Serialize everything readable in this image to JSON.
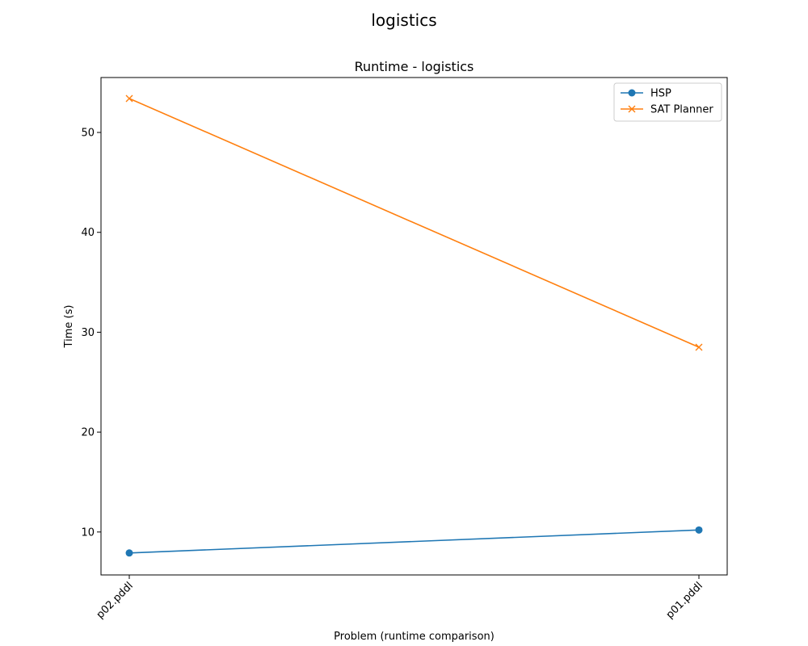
{
  "figure_title": "logistics",
  "chart_data": {
    "type": "line",
    "title": "Runtime - logistics",
    "xlabel": "Problem (runtime comparison)",
    "ylabel": "Time (s)",
    "categories": [
      "p02.pddl",
      "p01.pddl"
    ],
    "ylim": [
      5.7,
      55.5
    ],
    "yticks": [
      10,
      20,
      30,
      40,
      50
    ],
    "legend_position": "top-right",
    "grid": false,
    "series": [
      {
        "name": "HSP",
        "marker": "circle",
        "color": "#1f77b4",
        "values": [
          7.9,
          10.2
        ]
      },
      {
        "name": "SAT Planner",
        "marker": "x",
        "color": "#ff7f0e",
        "values": [
          53.4,
          28.5
        ]
      }
    ]
  }
}
